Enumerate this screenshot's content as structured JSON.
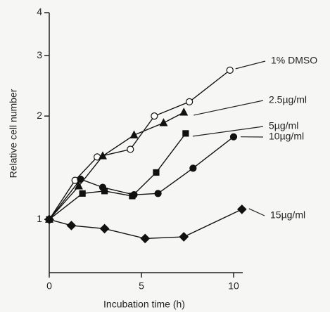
{
  "chart_data": {
    "type": "line",
    "xlabel": "Incubation time (h)",
    "ylabel": "Relative cell number",
    "xlim": [
      0,
      10.6
    ],
    "xticks": [
      0,
      5,
      10
    ],
    "ylim": [
      0.7,
      4
    ],
    "yticks": [
      1,
      2,
      3,
      4
    ],
    "log_y": true,
    "grid": false,
    "series": [
      {
        "name": "1% DMSO",
        "color": "#111111",
        "marker": "open-circle",
        "x": [
          0,
          1.4,
          2.6,
          4.4,
          5.7,
          7.6,
          9.8
        ],
        "values": [
          1,
          1.3,
          1.52,
          1.6,
          2.0,
          2.2,
          2.72
        ]
      },
      {
        "name": "2.5µg/ml",
        "color": "#111111",
        "marker": "triangle",
        "x": [
          0,
          1.6,
          2.9,
          4.6,
          6.2,
          7.3
        ],
        "values": [
          1,
          1.25,
          1.53,
          1.76,
          1.91,
          2.05
        ]
      },
      {
        "name": "5µg/ml",
        "color": "#111111",
        "marker": "square",
        "x": [
          0,
          1.8,
          3.0,
          4.5,
          5.8,
          7.4
        ],
        "values": [
          1,
          1.19,
          1.21,
          1.17,
          1.37,
          1.78
        ]
      },
      {
        "name": "10µg/ml",
        "color": "#111111",
        "marker": "circle",
        "x": [
          0,
          1.7,
          2.9,
          4.6,
          5.9,
          7.8,
          10.0
        ],
        "values": [
          1,
          1.31,
          1.24,
          1.18,
          1.19,
          1.41,
          1.74
        ]
      },
      {
        "name": "15µg/ml",
        "color": "#111111",
        "marker": "diamond",
        "x": [
          0,
          1.2,
          3.0,
          5.2,
          7.3,
          10.45
        ],
        "values": [
          1,
          0.96,
          0.94,
          0.88,
          0.89,
          1.07
        ]
      }
    ]
  }
}
